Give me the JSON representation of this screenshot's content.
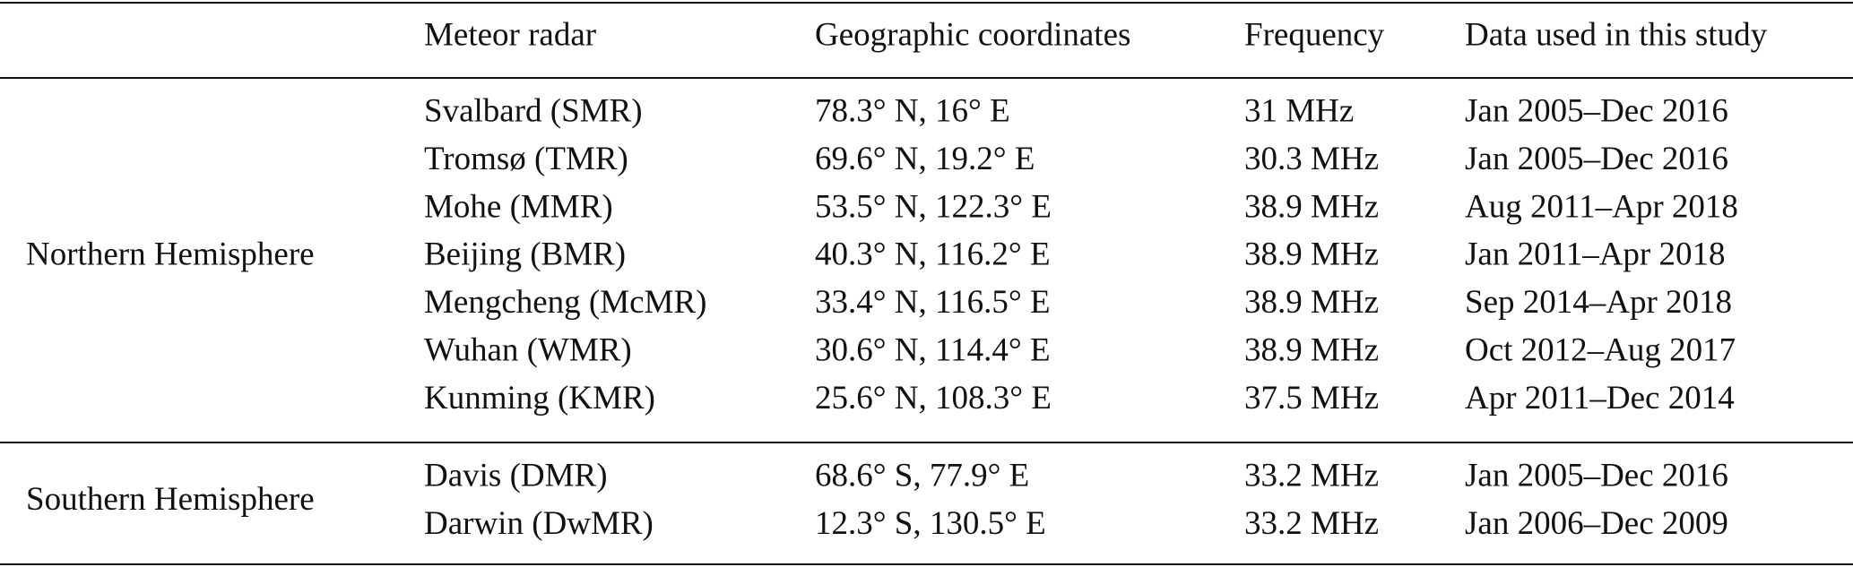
{
  "table": {
    "header": [
      "Meteor radar",
      "Geographic coordinates",
      "Frequency",
      "Data used in this study"
    ],
    "groups": [
      {
        "label": "Northern Hemisphere",
        "rows": [
          [
            "Svalbard (SMR)",
            "78.3° N, 16° E",
            "31 MHz",
            "Jan 2005–Dec 2016"
          ],
          [
            "Tromsø (TMR)",
            "69.6° N, 19.2° E",
            "30.3 MHz",
            "Jan 2005–Dec 2016"
          ],
          [
            "Mohe (MMR)",
            "53.5° N, 122.3° E",
            "38.9 MHz",
            "Aug 2011–Apr 2018"
          ],
          [
            "Beijing (BMR)",
            "40.3° N, 116.2° E",
            "38.9 MHz",
            "Jan 2011–Apr 2018"
          ],
          [
            "Mengcheng (McMR)",
            "33.4° N, 116.5° E",
            "38.9 MHz",
            "Sep 2014–Apr 2018"
          ],
          [
            "Wuhan (WMR)",
            "30.6° N, 114.4° E",
            "38.9 MHz",
            "Oct 2012–Aug 2017"
          ],
          [
            "Kunming (KMR)",
            "25.6° N, 108.3° E",
            "37.5 MHz",
            "Apr 2011–Dec 2014"
          ]
        ]
      },
      {
        "label": "Southern Hemisphere",
        "rows": [
          [
            "Davis (DMR)",
            "68.6° S, 77.9° E",
            "33.2 MHz",
            "Jan 2005–Dec 2016"
          ],
          [
            "Darwin (DwMR)",
            "12.3° S, 130.5° E",
            "33.2 MHz",
            "Jan 2006–Dec 2009"
          ]
        ]
      }
    ]
  }
}
